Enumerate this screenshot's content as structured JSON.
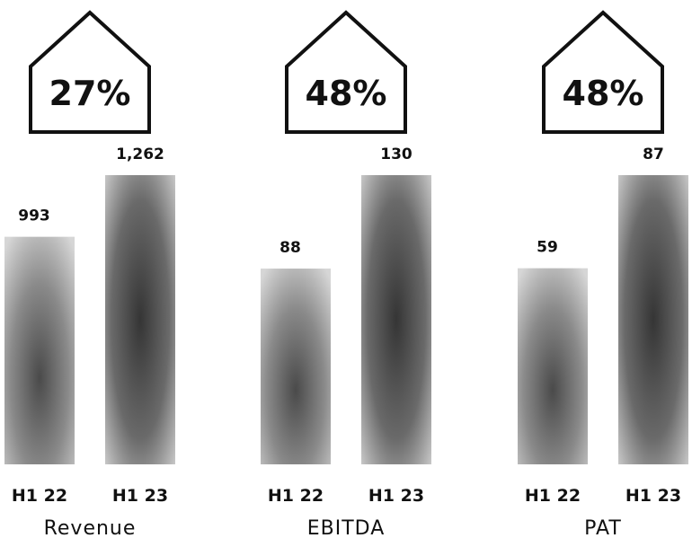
{
  "chart_data": {
    "type": "bar",
    "groups": [
      {
        "label": "Revenue",
        "growth": "27%",
        "categories": [
          "H1 22",
          "H1 23"
        ],
        "values": [
          993,
          1262
        ],
        "value_labels": [
          "993",
          "1,262"
        ]
      },
      {
        "label": "EBITDA",
        "growth": "48%",
        "categories": [
          "H1 22",
          "H1 23"
        ],
        "values": [
          88,
          130
        ],
        "value_labels": [
          "88",
          "130"
        ]
      },
      {
        "label": "PAT",
        "growth": "48%",
        "categories": [
          "H1 22",
          "H1 23"
        ],
        "values": [
          59,
          87
        ],
        "value_labels": [
          "59",
          "87"
        ]
      }
    ],
    "bar_colors": {
      "light": "#d6d6d6",
      "dark": "#3a3a3a"
    },
    "grid": false,
    "legend": "none"
  }
}
